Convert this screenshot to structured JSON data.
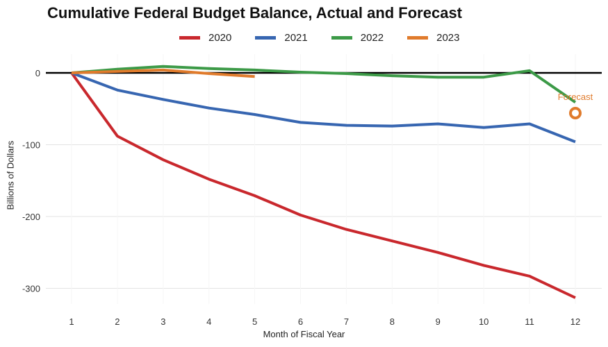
{
  "chart_data": {
    "type": "line",
    "title": "Cumulative Federal Budget Balance, Actual and Forecast",
    "xlabel": "Month of Fiscal Year",
    "ylabel": "Billions of Dollars",
    "x": [
      1,
      2,
      3,
      4,
      5,
      6,
      7,
      8,
      9,
      10,
      11,
      12
    ],
    "xlim": [
      1,
      12
    ],
    "ylim": [
      -320,
      5
    ],
    "yticks": [
      0,
      -100,
      -200,
      -300
    ],
    "grid": true,
    "legend_position": "top",
    "series": [
      {
        "name": "2020",
        "color": "#c9282d",
        "x": [
          1,
          2,
          3,
          4,
          5,
          6,
          7,
          8,
          9,
          10,
          11,
          12
        ],
        "values": [
          0,
          -88,
          -121,
          -148,
          -171,
          -198,
          -218,
          -234,
          -250,
          -268,
          -283,
          -313
        ]
      },
      {
        "name": "2021",
        "color": "#3766b1",
        "x": [
          1,
          2,
          3,
          4,
          5,
          6,
          7,
          8,
          9,
          10,
          11,
          12
        ],
        "values": [
          0,
          -24,
          -37,
          -49,
          -58,
          -69,
          -73,
          -74,
          -71,
          -76,
          -71,
          -96
        ]
      },
      {
        "name": "2022",
        "color": "#3c9a47",
        "x": [
          1,
          2,
          3,
          4,
          5,
          6,
          7,
          8,
          9,
          10,
          11,
          12
        ],
        "values": [
          0,
          5,
          9,
          6,
          4,
          1,
          -1,
          -4,
          -6,
          -6,
          3,
          -41
        ]
      },
      {
        "name": "2023",
        "color": "#e07b2c",
        "x": [
          1,
          2,
          3,
          4,
          5
        ],
        "values": [
          0,
          2,
          4,
          -1,
          -5
        ]
      }
    ],
    "annotations": [
      {
        "text": "Forecast",
        "x": 12,
        "y": -56,
        "color": "#e07b2c",
        "marker": "open-circle"
      }
    ]
  }
}
